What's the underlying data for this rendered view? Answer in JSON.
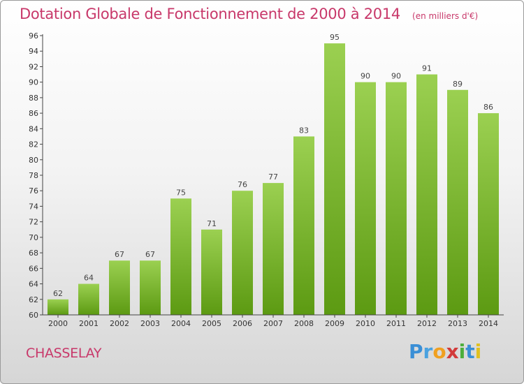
{
  "chart_data": {
    "type": "bar",
    "title": "Dotation Globale de Fonctionnement de 2000 à 2014",
    "subtitle": "(en milliers d'€)",
    "categories": [
      "2000",
      "2001",
      "2002",
      "2003",
      "2004",
      "2005",
      "2006",
      "2007",
      "2008",
      "2009",
      "2010",
      "2011",
      "2012",
      "2013",
      "2014"
    ],
    "values": [
      62,
      64,
      67,
      67,
      75,
      71,
      76,
      77,
      83,
      95,
      90,
      90,
      91,
      89,
      86
    ],
    "ylim": [
      60,
      96
    ],
    "yticks": [
      60,
      62,
      64,
      66,
      68,
      70,
      72,
      74,
      76,
      78,
      80,
      82,
      84,
      86,
      88,
      90,
      92,
      94,
      96
    ],
    "grid": false,
    "colors": {
      "bar_top": "#9bd051",
      "bar_bottom": "#5c9a12"
    }
  },
  "commune": "CHASSELAY",
  "logo": "Proxiti"
}
